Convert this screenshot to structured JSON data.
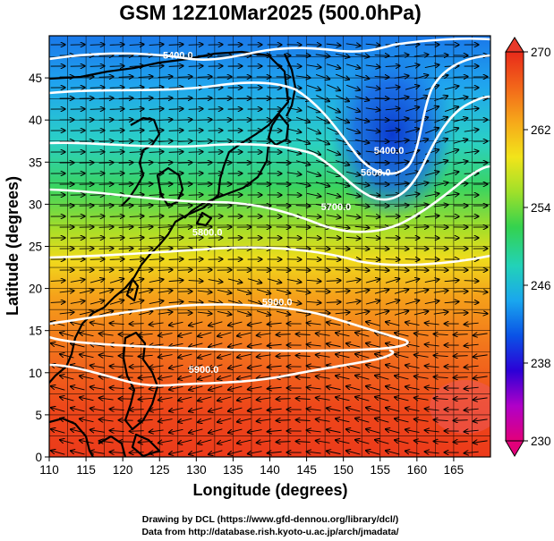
{
  "title": "GSM 12Z10Mar2025 (500.0hPa)",
  "x_axis": {
    "label": "Longitude (degrees)",
    "min": 110,
    "max": 170,
    "ticks": [
      "110",
      "115",
      "120",
      "125",
      "130",
      "135",
      "140",
      "145",
      "150",
      "155",
      "160",
      "165"
    ]
  },
  "y_axis": {
    "label": "Latitude  (degrees)",
    "min": 0,
    "max": 50,
    "ticks": [
      "0",
      "5",
      "10",
      "15",
      "20",
      "25",
      "30",
      "35",
      "40",
      "45"
    ]
  },
  "colorbar": {
    "min": 230,
    "max": 270,
    "labels": [
      "270",
      "262",
      "254",
      "246",
      "238",
      "230"
    ],
    "colors": [
      "#e2007a",
      "#b000c8",
      "#2c00d6",
      "#0a52e6",
      "#1aa6ee",
      "#22d2b8",
      "#34d24e",
      "#a0e02a",
      "#f2e41a",
      "#f6a81a",
      "#f2661a",
      "#e82a1a"
    ]
  },
  "contours": [
    {
      "label": "5400.0",
      "lon": 127.5,
      "lat": 47.3
    },
    {
      "label": "5400.0",
      "lon": 156.2,
      "lat": 36.0
    },
    {
      "label": "5600.0",
      "lon": 154.4,
      "lat": 33.4
    },
    {
      "label": "5700.0",
      "lon": 149.0,
      "lat": 29.3
    },
    {
      "label": "5800.0",
      "lon": 131.5,
      "lat": 26.3
    },
    {
      "label": "5900.0",
      "lon": 141.0,
      "lat": 18.0
    },
    {
      "label": "5900.0",
      "lon": 131.0,
      "lat": 10.0
    }
  ],
  "credits": {
    "line1": "Drawing by DCL (https://www.gfd-dennou.org/library/dcl/)",
    "line2": "Data from http://database.rish.kyoto-u.ac.jp/arch/jmadata/"
  }
}
